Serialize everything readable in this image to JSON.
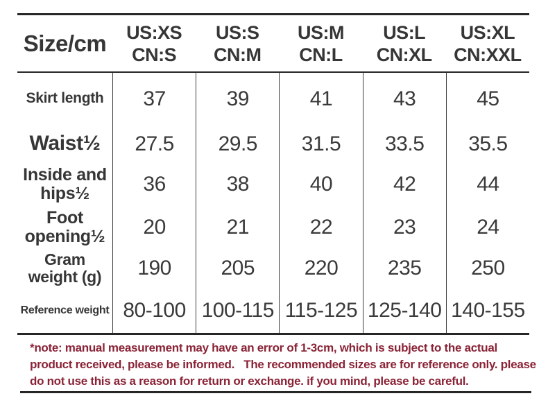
{
  "chart_data": {
    "type": "table",
    "title": "Size/cm",
    "columns": [
      {
        "us": "US:XS",
        "cn": "CN:S"
      },
      {
        "us": "US:S",
        "cn": "CN:M"
      },
      {
        "us": "US:M",
        "cn": "CN:L"
      },
      {
        "us": "US:L",
        "cn": "CN:XL"
      },
      {
        "us": "US:XL",
        "cn": "CN:XXL"
      }
    ],
    "rows": [
      {
        "label": "Skirt length",
        "label_lines": [
          "Skirt length"
        ],
        "values": [
          "37",
          "39",
          "41",
          "43",
          "45"
        ]
      },
      {
        "label": "Waist½",
        "label_lines": [
          "Waist½"
        ],
        "values": [
          "27.5",
          "29.5",
          "31.5",
          "33.5",
          "35.5"
        ]
      },
      {
        "label": "Inside and hips½",
        "label_lines": [
          "Inside and",
          "hips½"
        ],
        "values": [
          "36",
          "38",
          "40",
          "42",
          "44"
        ]
      },
      {
        "label": "Foot opening½",
        "label_lines": [
          "Foot",
          "opening½"
        ],
        "values": [
          "20",
          "21",
          "22",
          "23",
          "24"
        ]
      },
      {
        "label": "Gram weight (g)",
        "label_lines": [
          "Gram",
          "weight (g)"
        ],
        "values": [
          "190",
          "205",
          "220",
          "235",
          "250"
        ]
      },
      {
        "label": "Reference weight",
        "label_lines": [
          "Reference weight"
        ],
        "values": [
          "80-100",
          "100-115",
          "115-125",
          "125-140",
          "140-155"
        ]
      }
    ]
  },
  "note": {
    "text": "*note: manual measurement may have an error of 1-3cm, which is subject to the actual product received, please be informed.   The recommended sizes are for reference only. please do not use this as a reason for return or exchange. if you mind, please be careful.",
    "lines": [
      "*note: manual measurement may have an error of 1-3cm, which is subject to the actual",
      "product received, please be informed.   The recommended sizes are for reference only. please",
      "do not use this as a reason for return or exchange. if you mind, please be careful."
    ]
  },
  "colors": {
    "text": "#363636",
    "rule": "#262626",
    "note": "#8A2336",
    "background": "#FFFFFF"
  }
}
